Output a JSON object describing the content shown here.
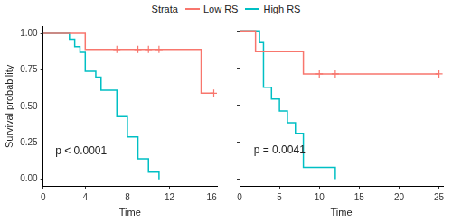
{
  "chart_data": [
    {
      "type": "step",
      "x_label": "Time",
      "y_label": "Survival probability",
      "annotation": "p < 0.0001",
      "legend": "top",
      "legend_title": "Strata",
      "grid": false,
      "xlim": [
        0,
        16.5
      ],
      "xticks": [
        0,
        4,
        8,
        12,
        16
      ],
      "ylim": [
        -0.05,
        1.05
      ],
      "yticks": [
        {
          "value": 0,
          "label": "0.00"
        },
        {
          "value": 0.25,
          "label": "0.25"
        },
        {
          "value": 0.5,
          "label": "0.50"
        },
        {
          "value": 0.75,
          "label": "0.75"
        },
        {
          "value": 1,
          "label": "1.00"
        }
      ],
      "series": [
        {
          "name": "Low RS",
          "color": "#F8766D",
          "marker": "cross",
          "x": [
            0,
            4,
            15,
            16.2
          ],
          "values": [
            1,
            0.89,
            0.59,
            0.59
          ],
          "censor_x": [
            7,
            9,
            10,
            11,
            16.2
          ],
          "censor_values": [
            0.89,
            0.89,
            0.89,
            0.89,
            0.59
          ]
        },
        {
          "name": "High RS",
          "color": "#00BFC4",
          "marker": "cross",
          "x": [
            0,
            2.5,
            3,
            3.5,
            4,
            5,
            5.5,
            7,
            8,
            9,
            10,
            11
          ],
          "values": [
            1,
            0.96,
            0.91,
            0.87,
            0.74,
            0.7,
            0.61,
            0.43,
            0.29,
            0.14,
            0.05,
            0
          ]
        }
      ]
    },
    {
      "type": "step",
      "x_label": "Time",
      "annotation": "p = 0.0041",
      "grid": false,
      "tick_labels": "x",
      "xlim": [
        0,
        25.5
      ],
      "xticks": [
        0,
        5,
        10,
        15,
        20,
        25
      ],
      "ylim": [
        -0.05,
        1.05
      ],
      "yticks": [
        {
          "value": 0,
          "label": "0.00"
        },
        {
          "value": 0.25,
          "label": "0.25"
        },
        {
          "value": 0.5,
          "label": "0.50"
        },
        {
          "value": 0.75,
          "label": "0.75"
        },
        {
          "value": 1,
          "label": "1.00"
        }
      ],
      "series": [
        {
          "name": "Low RS",
          "color": "#F8766D",
          "marker": "cross",
          "x": [
            0,
            2,
            8,
            25
          ],
          "values": [
            1,
            0.86,
            0.71,
            0.71
          ],
          "censor_x": [
            10,
            12,
            25
          ],
          "censor_values": [
            0.71,
            0.71,
            0.71
          ]
        },
        {
          "name": "High RS",
          "color": "#00BFC4",
          "marker": "cross",
          "x": [
            0,
            2.5,
            3,
            4,
            5,
            6,
            7,
            8,
            12
          ],
          "values": [
            1,
            0.92,
            0.62,
            0.54,
            0.46,
            0.38,
            0.31,
            0.08,
            0
          ]
        }
      ]
    }
  ]
}
